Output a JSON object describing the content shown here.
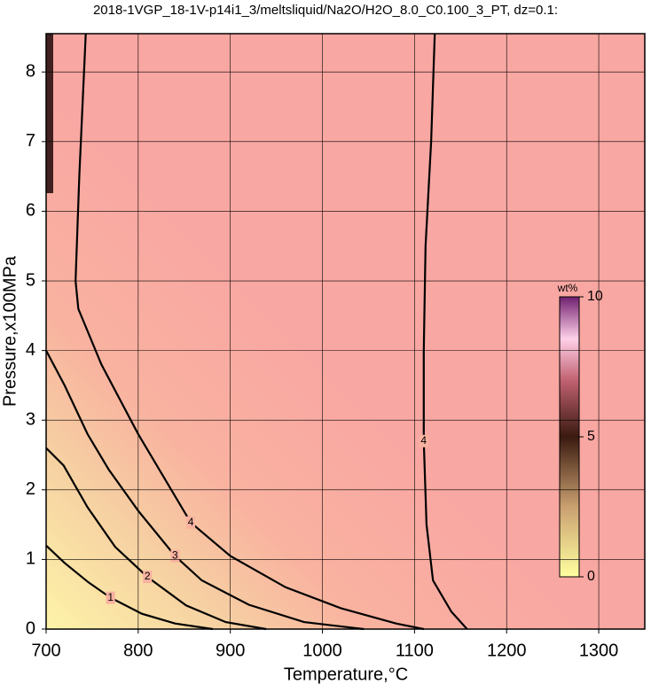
{
  "chart_data": {
    "type": "contour",
    "title": "2018-1VGP_18-1V-p14i1_3/meltsliquid/Na2O/H2O_8.0_C0.100_3_PT, dz=0.1:",
    "x_label": "Temperature,°C",
    "y_label": "Pressure,x100MPa",
    "xlim": [
      700,
      1350
    ],
    "ylim": [
      0,
      8.55
    ],
    "xticks": [
      700,
      800,
      900,
      1000,
      1100,
      1200,
      1300
    ],
    "yticks": [
      0,
      1,
      2,
      3,
      4,
      5,
      6,
      7,
      8
    ],
    "grid": true,
    "contours": [
      {
        "label": "1",
        "x": [
          700,
          720,
          746,
          770,
          804,
          840,
          881
        ],
        "y": [
          1.2,
          0.95,
          0.67,
          0.45,
          0.22,
          0.08,
          0
        ]
      },
      {
        "label": "2",
        "x": [
          700,
          719,
          745,
          775,
          810,
          852,
          895,
          939
        ],
        "y": [
          2.6,
          2.35,
          1.75,
          1.18,
          0.75,
          0.34,
          0.1,
          0
        ]
      },
      {
        "label": "3",
        "x": [
          700,
          720,
          745,
          768,
          800,
          840,
          869,
          920,
          980,
          1045
        ],
        "y": [
          4.0,
          3.5,
          2.8,
          2.29,
          1.7,
          1.05,
          0.7,
          0.35,
          0.1,
          0
        ]
      },
      {
        "label": "4",
        "x": [
          743,
          736,
          732,
          735,
          760,
          800,
          857,
          900,
          960,
          1020,
          1080,
          1110
        ],
        "y": [
          8.55,
          6.5,
          5.0,
          4.6,
          3.8,
          2.8,
          1.53,
          1.05,
          0.6,
          0.3,
          0.08,
          0
        ]
      },
      {
        "label": "4",
        "x": [
          1122,
          1118,
          1112,
          1110,
          1110,
          1113,
          1120,
          1140,
          1157
        ],
        "y": [
          8.55,
          7,
          5.5,
          4,
          2.7,
          1.5,
          0.7,
          0.25,
          0
        ]
      }
    ],
    "colorbar": {
      "label": "wt%",
      "clim": [
        0,
        10
      ],
      "ticks": [
        0,
        5,
        10
      ]
    }
  }
}
